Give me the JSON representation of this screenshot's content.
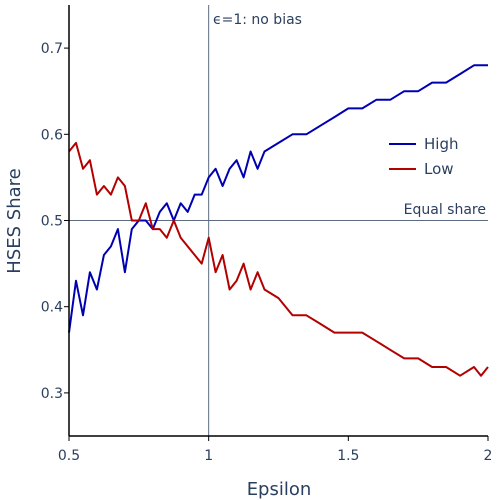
{
  "chart_data": {
    "type": "line",
    "xlabel": "Epsilon",
    "ylabel": "HSES Share",
    "xlim": [
      0.5,
      2.0
    ],
    "ylim": [
      0.25,
      0.75
    ],
    "xticks": [
      0.5,
      1,
      1.5,
      2
    ],
    "xtick_labels": [
      "0.5",
      "1",
      "1.5",
      "2"
    ],
    "yticks": [
      0.3,
      0.4,
      0.5,
      0.6,
      0.7
    ],
    "ytick_labels": [
      "0.3",
      "0.4",
      "0.5",
      "0.6",
      "0.7"
    ],
    "grid": false,
    "legend_position": "right",
    "reference_lines": [
      {
        "orientation": "vertical",
        "value": 1,
        "label": "ϵ=1: no bias"
      },
      {
        "orientation": "horizontal",
        "value": 0.5,
        "label": "Equal share"
      }
    ],
    "series": [
      {
        "name": "High",
        "color": "#0000b3",
        "x": [
          0.5,
          0.525,
          0.55,
          0.575,
          0.6,
          0.625,
          0.65,
          0.675,
          0.7,
          0.725,
          0.75,
          0.775,
          0.8,
          0.825,
          0.85,
          0.875,
          0.9,
          0.925,
          0.95,
          0.975,
          1.0,
          1.025,
          1.05,
          1.075,
          1.1,
          1.125,
          1.15,
          1.175,
          1.2,
          1.25,
          1.3,
          1.35,
          1.4,
          1.45,
          1.5,
          1.55,
          1.6,
          1.65,
          1.7,
          1.75,
          1.8,
          1.85,
          1.9,
          1.95,
          1.975,
          2.0
        ],
        "y": [
          0.37,
          0.43,
          0.39,
          0.44,
          0.42,
          0.46,
          0.47,
          0.49,
          0.44,
          0.49,
          0.5,
          0.5,
          0.49,
          0.51,
          0.52,
          0.5,
          0.52,
          0.51,
          0.53,
          0.53,
          0.55,
          0.56,
          0.54,
          0.56,
          0.57,
          0.55,
          0.58,
          0.56,
          0.58,
          0.59,
          0.6,
          0.6,
          0.61,
          0.62,
          0.63,
          0.63,
          0.64,
          0.64,
          0.65,
          0.65,
          0.66,
          0.66,
          0.67,
          0.68,
          0.68,
          0.68
        ]
      },
      {
        "name": "Low",
        "color": "#b30000",
        "x": [
          0.5,
          0.525,
          0.55,
          0.575,
          0.6,
          0.625,
          0.65,
          0.675,
          0.7,
          0.725,
          0.75,
          0.775,
          0.8,
          0.825,
          0.85,
          0.875,
          0.9,
          0.925,
          0.95,
          0.975,
          1.0,
          1.025,
          1.05,
          1.075,
          1.1,
          1.125,
          1.15,
          1.175,
          1.2,
          1.25,
          1.3,
          1.35,
          1.4,
          1.45,
          1.5,
          1.55,
          1.6,
          1.65,
          1.7,
          1.75,
          1.8,
          1.85,
          1.9,
          1.95,
          1.975,
          2.0
        ],
        "y": [
          0.58,
          0.59,
          0.56,
          0.57,
          0.53,
          0.54,
          0.53,
          0.55,
          0.54,
          0.5,
          0.5,
          0.52,
          0.49,
          0.49,
          0.48,
          0.5,
          0.48,
          0.47,
          0.46,
          0.45,
          0.48,
          0.44,
          0.46,
          0.42,
          0.43,
          0.45,
          0.42,
          0.44,
          0.42,
          0.41,
          0.39,
          0.39,
          0.38,
          0.37,
          0.37,
          0.37,
          0.36,
          0.35,
          0.34,
          0.34,
          0.33,
          0.33,
          0.32,
          0.33,
          0.32,
          0.33
        ]
      }
    ]
  }
}
